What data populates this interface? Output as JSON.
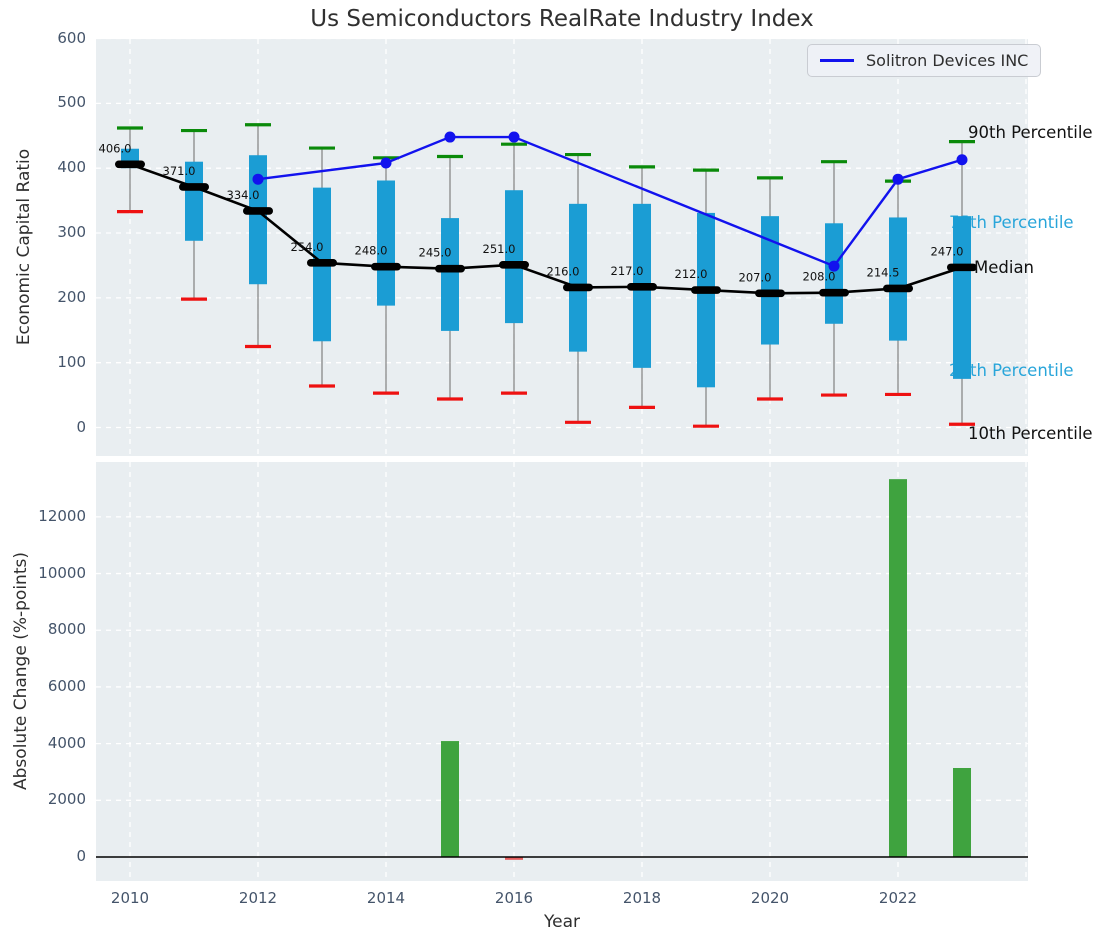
{
  "colors": {
    "axes_background": "#e9eef1",
    "grid": "#ffffff",
    "tick_label": "#44546a",
    "text": "#2f2f2f",
    "box_fill": "#1b9dd4",
    "whisker": "#808080",
    "p90_cap": "#0a8a0a",
    "p10_cap": "#ee1111",
    "median": "#000000",
    "solitron_line": "#1212ee",
    "bar_positive": "#3fa33f",
    "bar_negative": "#e45f5f",
    "annotation_cyan": "#28a5da"
  },
  "legend": {
    "label": "Solitron Devices INC"
  },
  "chart_data": [
    {
      "type": "boxplot-line",
      "title": "Us Semiconductors RealRate Industry Index",
      "ylabel": "Economic Capital Ratio",
      "ylim": [
        0,
        600
      ],
      "yticks": [
        0,
        100,
        200,
        300,
        400,
        500,
        600
      ],
      "grid": "white dashed on light gray",
      "legend_position": "upper right",
      "years": [
        2010,
        2011,
        2012,
        2013,
        2014,
        2015,
        2016,
        2017,
        2018,
        2019,
        2020,
        2021,
        2022,
        2023
      ],
      "median": [
        406,
        371,
        334,
        254,
        248,
        245,
        251,
        216,
        217,
        212,
        207,
        208,
        214.5,
        247
      ],
      "median_labels": [
        "406.0",
        "371.0",
        "334.0",
        "254.0",
        "248.0",
        "245.0",
        "251.0",
        "216.0",
        "217.0",
        "212.0",
        "207.0",
        "208.0",
        "214.5",
        "247.0"
      ],
      "p90": [
        462,
        458,
        467,
        431,
        416,
        418,
        437,
        421,
        402,
        397,
        385,
        410,
        380,
        441
      ],
      "p75": [
        430,
        410,
        420,
        370,
        381,
        323,
        366,
        345,
        345,
        331,
        326,
        315,
        324,
        326
      ],
      "p25": [
        400,
        288,
        221,
        133,
        188,
        149,
        161,
        117,
        92,
        62,
        128,
        160,
        134,
        75
      ],
      "p10": [
        333,
        198,
        125,
        64,
        53,
        44,
        53,
        8,
        31,
        2,
        44,
        50,
        51,
        5
      ],
      "series": [
        {
          "name": "Solitron Devices INC",
          "x": [
            2012,
            2014,
            2015,
            2016,
            2021,
            2022,
            2023
          ],
          "y": [
            383,
            408,
            448,
            448,
            249,
            383,
            413
          ]
        }
      ],
      "annotations": {
        "p90": "90th Percentile",
        "p75": "75th Percentile",
        "median": "Median",
        "p25": "25th Percentile",
        "p10": "10th Percentile"
      }
    },
    {
      "type": "bar",
      "xlabel": "Year",
      "ylabel": "Absolute Change (%-points)",
      "ylim": [
        -850,
        13930
      ],
      "yticks": [
        0,
        2000,
        4000,
        6000,
        8000,
        10000,
        12000
      ],
      "xticks": [
        2010,
        2012,
        2014,
        2016,
        2018,
        2020,
        2022
      ],
      "x": [
        2015,
        2016,
        2022,
        2023
      ],
      "values": [
        4090,
        -100,
        13330,
        3140
      ],
      "bar_colors": [
        "positive",
        "negative",
        "positive",
        "positive"
      ]
    }
  ]
}
